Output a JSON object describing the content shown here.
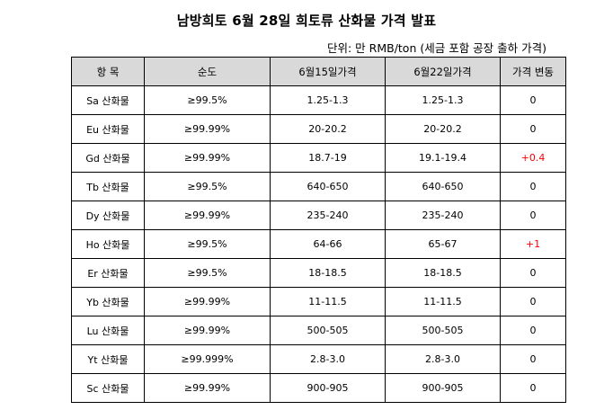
{
  "title": "남방희토 6월 28일 희토류 산화물 가격 발표",
  "unit_note": "단위: 만 RMB/ton (세금 포함 공장 출하 가격)",
  "colors": {
    "header_bg": "#d9d9d9",
    "border": "#000000",
    "positive_change": "#ff0000"
  },
  "table": {
    "headers": [
      "항 목",
      "순도",
      "6월15일가격",
      "6월22일가격",
      "가격 변동"
    ],
    "rows": [
      {
        "item": "Sa 산화물",
        "purity": "≥99.5%",
        "price_jun15": "1.25-1.3",
        "price_jun22": "1.25-1.3",
        "change": "0",
        "up": false
      },
      {
        "item": "Eu 산화물",
        "purity": "≥99.99%",
        "price_jun15": "20-20.2",
        "price_jun22": "20-20.2",
        "change": "0",
        "up": false
      },
      {
        "item": "Gd 산화물",
        "purity": "≥99.99%",
        "price_jun15": "18.7-19",
        "price_jun22": "19.1-19.4",
        "change": "+0.4",
        "up": true
      },
      {
        "item": "Tb 산화물",
        "purity": "≥99.5%",
        "price_jun15": "640-650",
        "price_jun22": "640-650",
        "change": "0",
        "up": false
      },
      {
        "item": "Dy 산화물",
        "purity": "≥99.99%",
        "price_jun15": "235-240",
        "price_jun22": "235-240",
        "change": "0",
        "up": false
      },
      {
        "item": "Ho 산화물",
        "purity": "≥99.5%",
        "price_jun15": "64-66",
        "price_jun22": "65-67",
        "change": "+1",
        "up": true
      },
      {
        "item": "Er 산화물",
        "purity": "≥99.5%",
        "price_jun15": "18-18.5",
        "price_jun22": "18-18.5",
        "change": "0",
        "up": false
      },
      {
        "item": "Yb 산화물",
        "purity": "≥99.99%",
        "price_jun15": "11-11.5",
        "price_jun22": "11-11.5",
        "change": "0",
        "up": false
      },
      {
        "item": "Lu 산화물",
        "purity": "≥99.99%",
        "price_jun15": "500-505",
        "price_jun22": "500-505",
        "change": "0",
        "up": false
      },
      {
        "item": "Yt 산화물",
        "purity": "≥99.999%",
        "price_jun15": "2.8-3.0",
        "price_jun22": "2.8-3.0",
        "change": "0",
        "up": false
      },
      {
        "item": "Sc 산화물",
        "purity": "≥99.99%",
        "price_jun15": "900-905",
        "price_jun22": "900-905",
        "change": "0",
        "up": false
      }
    ]
  }
}
